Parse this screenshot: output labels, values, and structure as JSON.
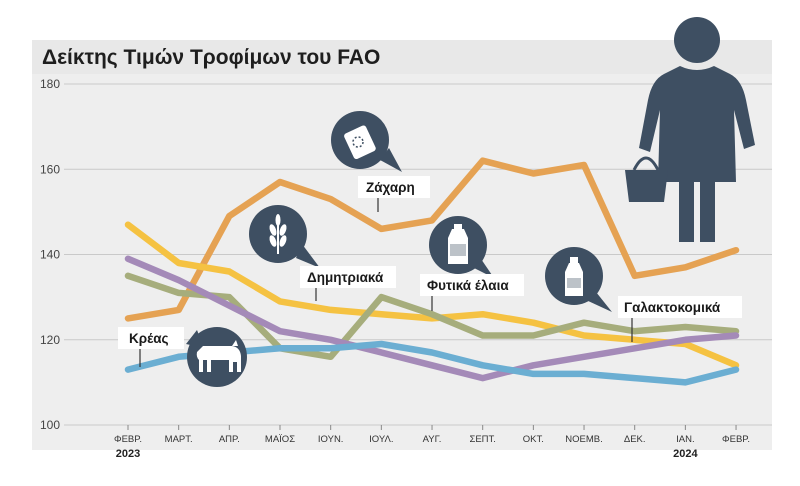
{
  "chart_data": {
    "type": "line",
    "title": "Δείκτης Τιμών Τροφίμων του FAO",
    "x": [
      "ΦΕΒΡ.",
      "ΜΑΡΤ.",
      "ΑΠΡ.",
      "ΜΑΪΟΣ",
      "ΙΟΥΝ.",
      "ΙΟΥΛ.",
      "ΑΥΓ.",
      "ΣΕΠΤ.",
      "ΟΚΤ.",
      "ΝΟΕΜΒ.",
      "ΔΕΚ.",
      "ΙΑΝ.",
      "ΦΕΒΡ."
    ],
    "years": [
      {
        "label": "2023",
        "index": 0
      },
      {
        "label": "2024",
        "index": 11
      }
    ],
    "ylim": [
      100,
      180
    ],
    "yticks": [
      100,
      120,
      140,
      160,
      180
    ],
    "grid": true,
    "series": [
      {
        "name": "Ζάχαρη",
        "color": "#e5a253",
        "icon": "sugar-packet-icon",
        "values": [
          125,
          127,
          149,
          157,
          153,
          146,
          148,
          162,
          159,
          161,
          135,
          137,
          141
        ]
      },
      {
        "name": "Δημητριακά",
        "color": "#f5c242",
        "icon": "wheat-icon",
        "values": [
          147,
          138,
          136,
          129,
          127,
          126,
          125,
          126,
          124,
          121,
          120,
          119,
          114
        ]
      },
      {
        "name": "Φυτικά έλαια",
        "color": "#a6ad7c",
        "icon": "oil-bottle-icon",
        "values": [
          135,
          131,
          130,
          118,
          116,
          130,
          126,
          121,
          121,
          124,
          122,
          123,
          122
        ]
      },
      {
        "name": "Γαλακτοκομικά",
        "color": "#a48ab8",
        "icon": "milk-bottle-icon",
        "values": [
          139,
          134,
          128,
          122,
          120,
          117,
          114,
          111,
          114,
          116,
          118,
          120,
          121
        ]
      },
      {
        "name": "Κρέας",
        "color": "#6baed2",
        "icon": "cow-icon",
        "values": [
          113,
          116,
          117,
          118,
          118,
          119,
          117,
          114,
          112,
          112,
          111,
          110,
          113
        ]
      }
    ]
  }
}
